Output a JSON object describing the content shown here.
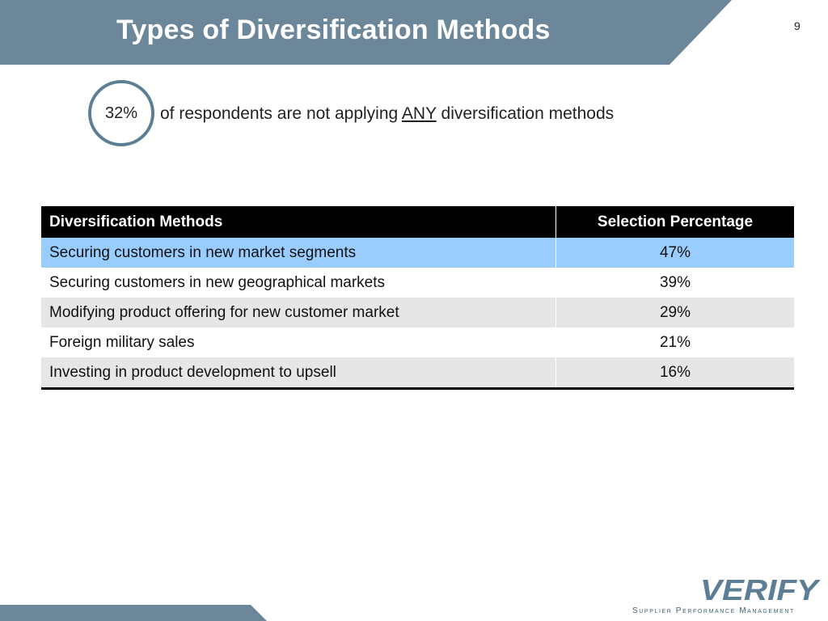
{
  "slide": {
    "title": "Types of Diversification Methods",
    "page_number": "9"
  },
  "stat": {
    "value": "32%",
    "text_before": "of respondents are not applying ",
    "text_emphasis": "ANY",
    "text_after": " diversification methods"
  },
  "table": {
    "headers": [
      "Diversification Methods",
      "Selection Percentage"
    ],
    "rows": [
      {
        "method": "Securing customers in new market segments",
        "percentage": "47%"
      },
      {
        "method": "Securing customers in new geographical markets",
        "percentage": "39%"
      },
      {
        "method": "Modifying product offering for new customer market",
        "percentage": "29%"
      },
      {
        "method": "Foreign military sales",
        "percentage": "21%"
      },
      {
        "method": "Investing in product development to upsell",
        "percentage": "16%"
      }
    ]
  },
  "branding": {
    "logo_text": "VERIFY",
    "tagline": "Supplier Performance Management"
  },
  "colors": {
    "header_band": "#6b8799",
    "accent_ring": "#5c7f95",
    "highlight_row": "#99ccff",
    "shade_row": "#e6e6e6",
    "logo": "#5c7f95"
  }
}
